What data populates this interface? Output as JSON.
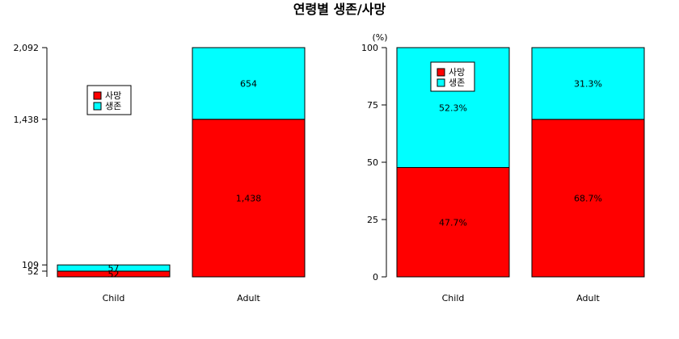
{
  "title": "연령별 생존/사망",
  "colors": {
    "death": "#ff0000",
    "survive": "#00ffff"
  },
  "chart_data": [
    {
      "type": "bar",
      "stacked": true,
      "categories": [
        "Child",
        "Adult"
      ],
      "series": [
        {
          "name": "사망",
          "values": [
            52,
            1438
          ]
        },
        {
          "name": "생존",
          "values": [
            57,
            654
          ]
        }
      ],
      "ylim": [
        0,
        2092
      ],
      "yticks": [
        52,
        109,
        1438,
        2092
      ],
      "ytick_labels": [
        "52",
        "109",
        "1,438",
        "2,092"
      ],
      "data_labels": [
        [
          "52",
          "1,438"
        ],
        [
          "57",
          "654"
        ]
      ],
      "legend": {
        "entries": [
          "사망",
          "생존"
        ],
        "position": "top-left"
      },
      "ylabel": ""
    },
    {
      "type": "bar",
      "stacked": true,
      "categories": [
        "Child",
        "Adult"
      ],
      "series": [
        {
          "name": "사망",
          "values": [
            47.7,
            68.7
          ]
        },
        {
          "name": "생존",
          "values": [
            52.3,
            31.3
          ]
        }
      ],
      "ylim": [
        0,
        100
      ],
      "yticks": [
        0,
        25,
        50,
        75,
        100
      ],
      "ytick_labels": [
        "0",
        "25",
        "50",
        "75",
        "100"
      ],
      "data_labels": [
        [
          "47.7%",
          "68.7%"
        ],
        [
          "52.3%",
          "31.3%"
        ]
      ],
      "legend": {
        "entries": [
          "사망",
          "생존"
        ],
        "position": "top-left"
      },
      "ylabel": "(%)"
    }
  ]
}
